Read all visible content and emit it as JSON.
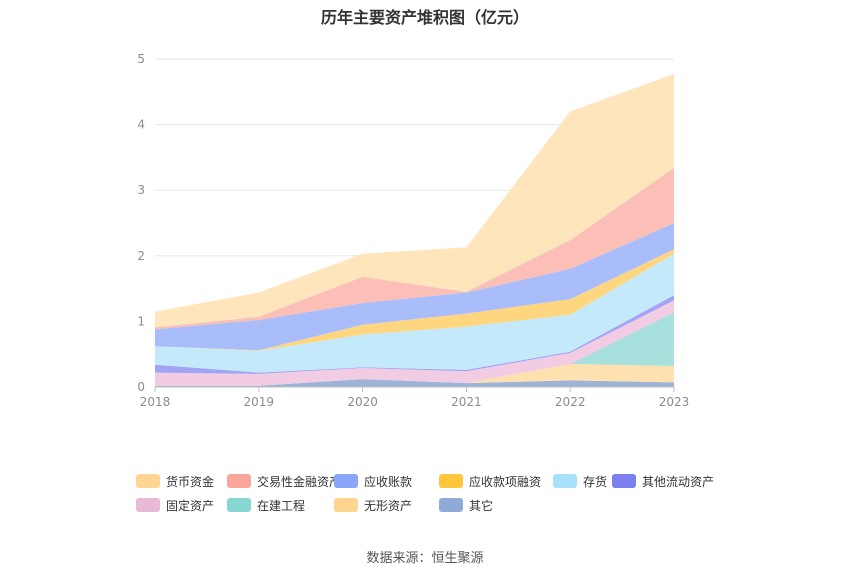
{
  "title": "历年主要资产堆积图（亿元）",
  "source_label": "数据来源：恒生聚源",
  "chart_data": {
    "type": "area",
    "stacked": true,
    "x": [
      "2018",
      "2019",
      "2020",
      "2021",
      "2022",
      "2023"
    ],
    "ylim": [
      0,
      5
    ],
    "yticks": [
      0,
      1,
      2,
      3,
      4,
      5
    ],
    "grid": true,
    "legend_position": "bottom",
    "series": [
      {
        "name": "其它",
        "color": "#9db4d8",
        "values": [
          0.02,
          0.02,
          0.12,
          0.06,
          0.1,
          0.07
        ]
      },
      {
        "name": "无形资产",
        "color": "#ffe1b0",
        "values": [
          0.0,
          0.0,
          0.0,
          0.0,
          0.25,
          0.25
        ]
      },
      {
        "name": "在建工程",
        "color": "#a8e0dd",
        "values": [
          0.0,
          0.0,
          0.0,
          0.0,
          0.0,
          0.82
        ]
      },
      {
        "name": "固定资产",
        "color": "#f1cce3",
        "values": [
          0.2,
          0.18,
          0.17,
          0.18,
          0.17,
          0.18
        ]
      },
      {
        "name": "其他流动资产",
        "color": "#a3a3f5",
        "values": [
          0.12,
          0.02,
          0.01,
          0.02,
          0.02,
          0.08
        ]
      },
      {
        "name": "存货",
        "color": "#c4e9fb",
        "values": [
          0.28,
          0.33,
          0.5,
          0.66,
          0.56,
          0.63
        ]
      },
      {
        "name": "应收款项融资",
        "color": "#ffd680",
        "values": [
          0.0,
          0.01,
          0.15,
          0.2,
          0.24,
          0.07
        ]
      },
      {
        "name": "应收账款",
        "color": "#a9bdfb",
        "values": [
          0.26,
          0.46,
          0.33,
          0.32,
          0.46,
          0.4
        ]
      },
      {
        "name": "交易性金融资产",
        "color": "#fbbfb8",
        "values": [
          0.03,
          0.05,
          0.4,
          0.01,
          0.44,
          0.84
        ]
      },
      {
        "name": "货币资金",
        "color": "#ffe5bb",
        "values": [
          0.24,
          0.37,
          0.35,
          0.68,
          1.96,
          1.43
        ]
      }
    ]
  },
  "legend_items": [
    {
      "label": "货币资金",
      "color": "#ffd591"
    },
    {
      "label": "交易性金融资产",
      "color": "#fba69b"
    },
    {
      "label": "应收账款",
      "color": "#8aa6fa"
    },
    {
      "label": "应收款项融资",
      "color": "#ffc53d"
    },
    {
      "label": "存货",
      "color": "#a7e0fb"
    },
    {
      "label": "其他流动资产",
      "color": "#7b7ff0"
    },
    {
      "label": "固定资产",
      "color": "#e9b9da"
    },
    {
      "label": "在建工程",
      "color": "#88d6d2"
    },
    {
      "label": "无形资产",
      "color": "#ffd591"
    },
    {
      "label": "其它",
      "color": "#8faad8"
    }
  ]
}
